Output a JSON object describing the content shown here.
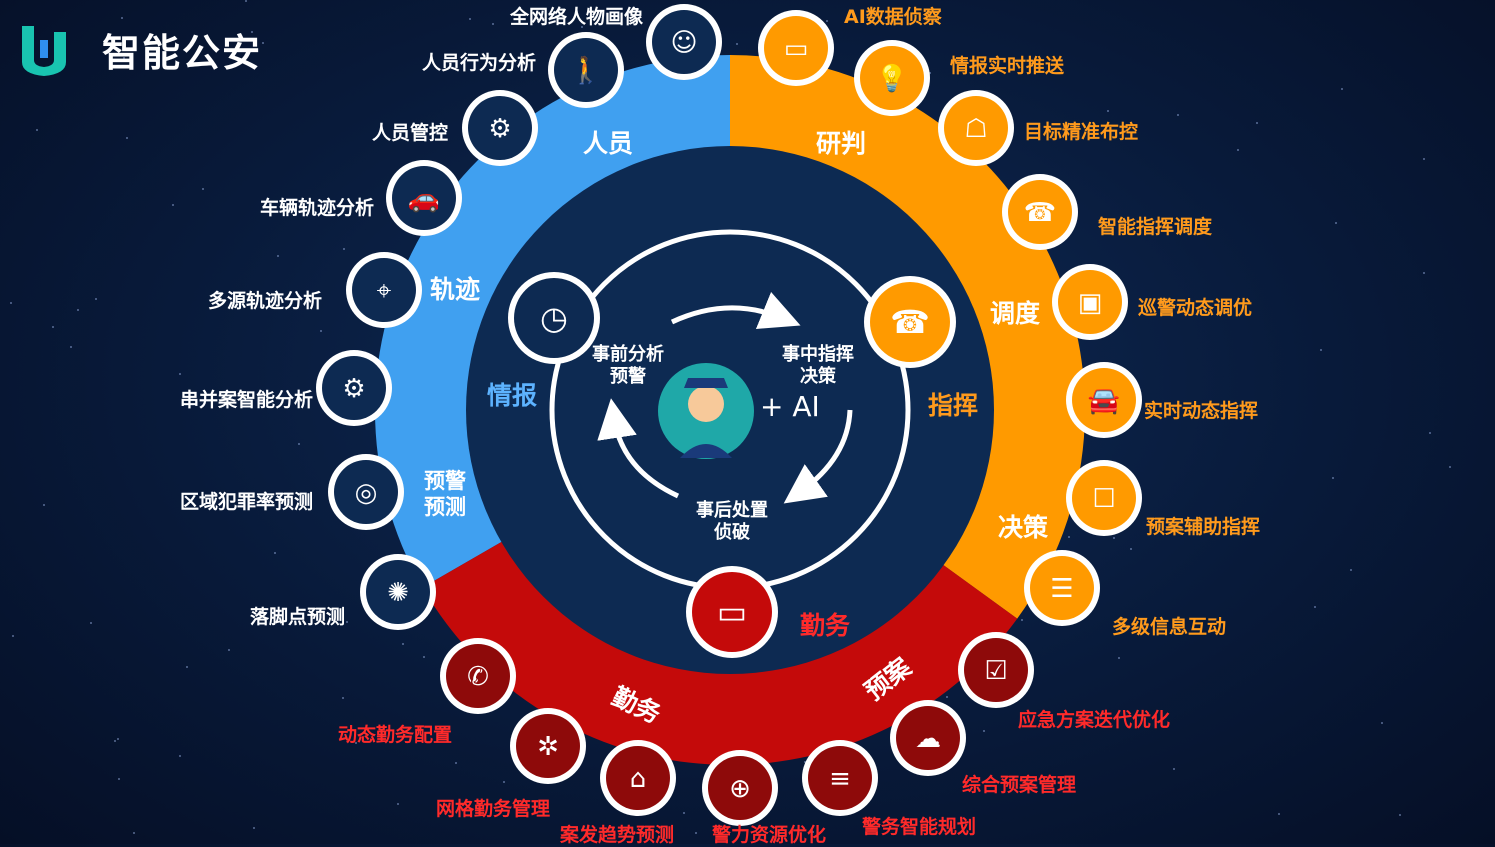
{
  "header": {
    "title": "智能公安"
  },
  "segments": {
    "person": "人员",
    "research": "研判",
    "track": "轨迹",
    "dispatch": "调度",
    "warning": "预警预测",
    "decision": "决策",
    "duty": "勤务",
    "plan": "预案"
  },
  "inner_ring": {
    "intel": "情报",
    "command": "指挥",
    "duty": "勤务"
  },
  "center": {
    "before": "事前分析预警",
    "during": "事中指挥决策",
    "after": "事后处置侦破",
    "ai": "+ AI"
  },
  "outer_items": [
    {
      "key": "portrait",
      "label": "全网络人物画像",
      "icon": "face-icon"
    },
    {
      "key": "behavior",
      "label": "人员行为分析",
      "icon": "walking-person-icon"
    },
    {
      "key": "control",
      "label": "人员管控",
      "icon": "head-gears-icon"
    },
    {
      "key": "vehicle",
      "label": "车辆轨迹分析",
      "icon": "car-icon"
    },
    {
      "key": "multi",
      "label": "多源轨迹分析",
      "icon": "map-route-icon"
    },
    {
      "key": "case",
      "label": "串并案智能分析",
      "icon": "gears-icon"
    },
    {
      "key": "crime",
      "label": "区域犯罪率预测",
      "icon": "target-icon"
    },
    {
      "key": "foothold",
      "label": "落脚点预测",
      "icon": "network-icon"
    },
    {
      "key": "ai_detect",
      "label": "AI数据侦察",
      "icon": "monitor-icon"
    },
    {
      "key": "push",
      "label": "情报实时推送",
      "icon": "bulb-icon"
    },
    {
      "key": "target",
      "label": "目标精准布控",
      "icon": "robot-icon"
    },
    {
      "key": "dispatch",
      "label": "智能指挥调度",
      "icon": "telephone-operator-icon"
    },
    {
      "key": "patrol",
      "label": "巡警动态调优",
      "icon": "dashboard-screen-icon"
    },
    {
      "key": "realtime",
      "label": "实时动态指挥",
      "icon": "car-front-icon"
    },
    {
      "key": "plan_assist",
      "label": "预案辅助指挥",
      "icon": "touch-screen-icon"
    },
    {
      "key": "interact",
      "label": "多级信息互动",
      "icon": "meeting-table-icon"
    },
    {
      "key": "emergency",
      "label": "应急方案迭代优化",
      "icon": "checklist-icon"
    },
    {
      "key": "plan_mgmt",
      "label": "综合预案管理",
      "icon": "cloud-icon"
    },
    {
      "key": "duty_plan",
      "label": "警务智能规划",
      "icon": "server-icon"
    },
    {
      "key": "resource",
      "label": "警力资源优化",
      "icon": "globe-data-icon"
    },
    {
      "key": "trend",
      "label": "案发趋势预测",
      "icon": "house-icon"
    },
    {
      "key": "grid",
      "label": "网格勤务管理",
      "icon": "grid-network-icon"
    },
    {
      "key": "dynamic",
      "label": "动态勤务配置",
      "icon": "phone-icon"
    }
  ],
  "colors": {
    "blue": "#40a0f0",
    "orange": "#ff9a00",
    "red": "#c40a0a",
    "navy": "#0d2a52",
    "bg": "#081a3a"
  }
}
